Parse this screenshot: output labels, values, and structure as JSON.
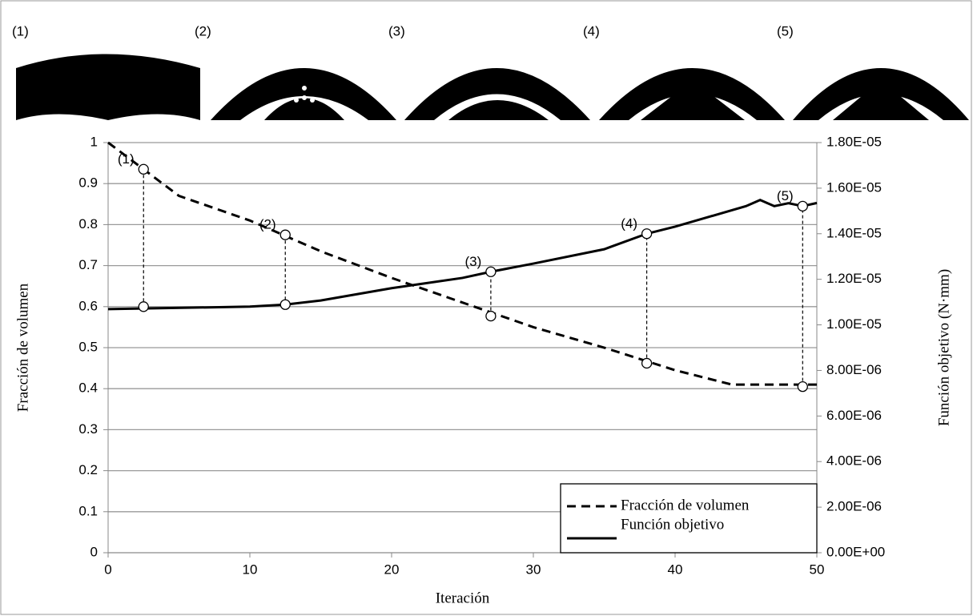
{
  "snapshot_labels": [
    "(1)",
    "(2)",
    "(3)",
    "(4)",
    "(5)"
  ],
  "chart_data": {
    "type": "line",
    "x_label": "Iteración",
    "y_label": "Fracción de volumen",
    "y2_label": "Función objetivo (N·mm)",
    "xlim": [
      0,
      50
    ],
    "xticks": [
      0,
      10,
      20,
      30,
      40,
      50
    ],
    "ylim": [
      0,
      1
    ],
    "yticks": [
      0,
      0.1,
      0.2,
      0.3,
      0.4,
      0.5,
      0.6,
      0.7,
      0.8,
      0.9,
      1
    ],
    "y2lim": [
      0,
      1.8e-05
    ],
    "y2ticks": [
      {
        "value": 0,
        "label": "0.00E+00"
      },
      {
        "value": 2e-06,
        "label": "2.00E-06"
      },
      {
        "value": 4e-06,
        "label": "4.00E-06"
      },
      {
        "value": 6e-06,
        "label": "6.00E-06"
      },
      {
        "value": 8e-06,
        "label": "8.00E-06"
      },
      {
        "value": 1e-05,
        "label": "1.00E-05"
      },
      {
        "value": 1.2e-05,
        "label": "1.20E-05"
      },
      {
        "value": 1.4e-05,
        "label": "1.40E-05"
      },
      {
        "value": 1.6e-05,
        "label": "1.60E-05"
      },
      {
        "value": 1.8e-05,
        "label": "1.80E-05"
      }
    ],
    "grid": true,
    "legend": "bottom-right",
    "series": [
      {
        "name": "Fracción de volumen",
        "color": "#000000",
        "dash": true,
        "x": [
          0,
          5,
          10,
          15,
          20,
          25,
          30,
          35,
          40,
          44,
          45,
          50
        ],
        "values": [
          1,
          0.87,
          0.81,
          0.735,
          0.67,
          0.61,
          0.55,
          0.5,
          0.445,
          0.41,
          0.41,
          0.41
        ]
      },
      {
        "name": "Función objetivo",
        "color": "#000000",
        "dash": false,
        "axis": "y2",
        "x": [
          0,
          10,
          12.5,
          15,
          20,
          22,
          25,
          27,
          30,
          35,
          38,
          40,
          45,
          46,
          47,
          48,
          49,
          50
        ],
        "values": [
          1.069e-05,
          1.08e-05,
          1.089e-05,
          1.107e-05,
          1.161e-05,
          1.179e-05,
          1.206e-05,
          1.233e-05,
          1.269e-05,
          1.332e-05,
          1.4e-05,
          1.431e-05,
          1.521e-05,
          1.548e-05,
          1.521e-05,
          1.534e-05,
          1.521e-05,
          1.535e-05
        ]
      }
    ],
    "markers": [
      {
        "label": "(1)",
        "x": 2.5,
        "volume": 0.935,
        "objective": 1.08e-05
      },
      {
        "label": "(2)",
        "x": 12.5,
        "volume": 0.775,
        "objective": 1.089e-05
      },
      {
        "label": "(3)",
        "x": 27,
        "volume": 0.577,
        "objective": 1.233e-05
      },
      {
        "label": "(4)",
        "x": 38,
        "volume": 0.462,
        "objective": 1.4e-05
      },
      {
        "label": "(5)",
        "x": 49,
        "volume": 0.405,
        "objective": 1.521e-05
      }
    ]
  }
}
